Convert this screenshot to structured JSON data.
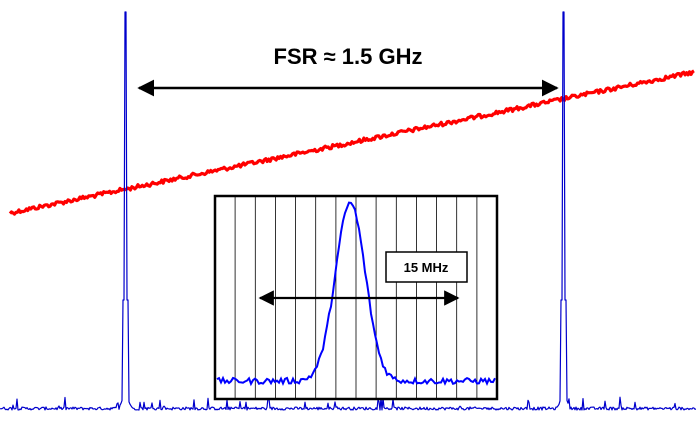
{
  "chart_data": [
    {
      "type": "line",
      "role": "main-trace",
      "annotations": {
        "fsr_label": "FSR ≈ 1.5 GHz"
      },
      "series": [
        {
          "color": "#ff0000",
          "x": [
            0,
            1
          ],
          "y": [
            0.0,
            1.0
          ]
        },
        {
          "color": "#0000ff",
          "peaks_x": [
            0.18,
            0.81
          ]
        }
      ]
    },
    {
      "type": "line",
      "role": "inset-zoom",
      "annotations": {
        "width_label": "15 MHz"
      },
      "grid": true,
      "series": [
        {
          "color": "#0000ff",
          "peak_center": 0.48
        }
      ]
    }
  ]
}
